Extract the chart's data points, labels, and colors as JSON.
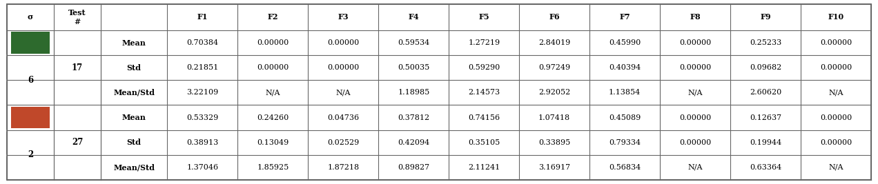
{
  "col_headers": [
    "σ",
    "Test\n#",
    "",
    "F1",
    "F2",
    "F3",
    "F4",
    "F5",
    "F6",
    "F7",
    "F8",
    "F9",
    "F10"
  ],
  "sigma_values": [
    "6",
    "2"
  ],
  "test_numbers": [
    "17",
    "27"
  ],
  "color_block_1": "#2d6a2d",
  "color_block_2": "#c0482a",
  "metrics": [
    "Mean",
    "Std",
    "Mean/Std",
    "Mean",
    "Std",
    "Mean/Std"
  ],
  "data": [
    [
      "0.70384",
      "0.00000",
      "0.00000",
      "0.59534",
      "1.27219",
      "2.84019",
      "0.45990",
      "0.00000",
      "0.25233",
      "0.00000"
    ],
    [
      "0.21851",
      "0.00000",
      "0.00000",
      "0.50035",
      "0.59290",
      "0.97249",
      "0.40394",
      "0.00000",
      "0.09682",
      "0.00000"
    ],
    [
      "3.22109",
      "N/A",
      "N/A",
      "1.18985",
      "2.14573",
      "2.92052",
      "1.13854",
      "N/A",
      "2.60620",
      "N/A"
    ],
    [
      "0.53329",
      "0.24260",
      "0.04736",
      "0.37812",
      "0.74156",
      "1.07418",
      "0.45089",
      "0.00000",
      "0.12637",
      "0.00000"
    ],
    [
      "0.38913",
      "0.13049",
      "0.02529",
      "0.42094",
      "0.35105",
      "0.33895",
      "0.79334",
      "0.00000",
      "0.19944",
      "0.00000"
    ],
    [
      "1.37046",
      "1.85925",
      "1.87218",
      "0.89827",
      "2.11241",
      "3.16917",
      "0.56834",
      "N/A",
      "0.63364",
      "N/A"
    ]
  ],
  "border_color": "#666666",
  "font_size": 8.0,
  "fig_width": 12.72,
  "fig_height": 2.67,
  "dpi": 100
}
